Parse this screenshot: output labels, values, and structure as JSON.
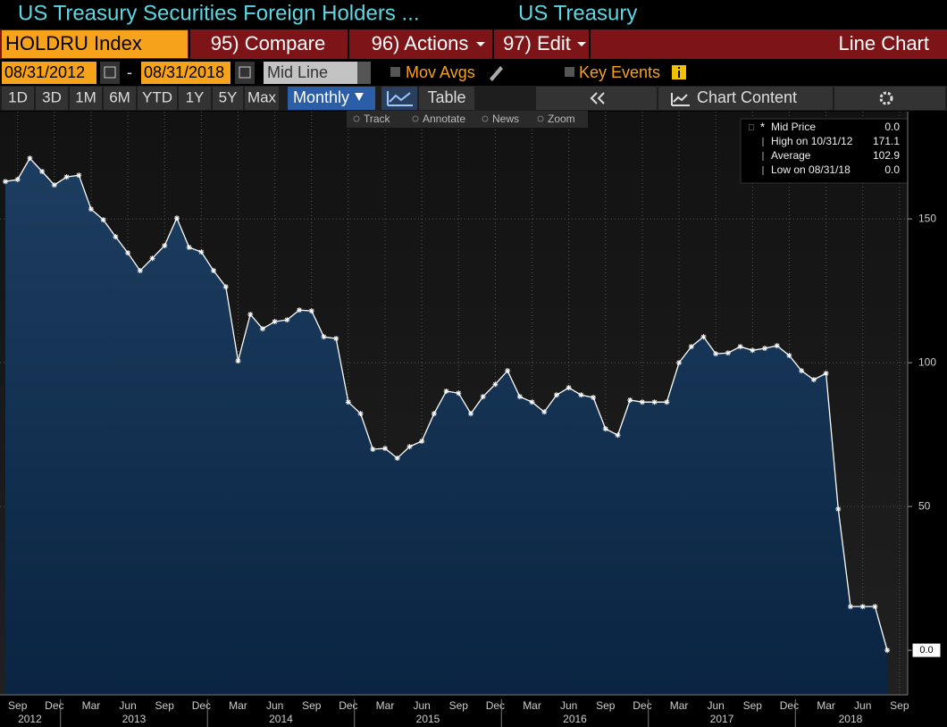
{
  "header": {
    "title": "US Treasury Securities Foreign Holders ...",
    "subtitle": "US Treasury"
  },
  "toolbar": {
    "ticker": "HOLDRU Index",
    "menus": [
      "95) Compare",
      "96) Actions",
      "97) Edit"
    ],
    "view": "Line Chart"
  },
  "range": {
    "start": "08/31/2012",
    "separator": "-",
    "end": "08/31/2018",
    "mode": "Mid Line",
    "options": [
      "Mov Avgs",
      "Key Events"
    ]
  },
  "periods": [
    "1D",
    "3D",
    "1M",
    "6M",
    "YTD",
    "1Y",
    "5Y",
    "Max"
  ],
  "frequency": "Monthly",
  "table_button": "Table",
  "chart_content": "Chart Content",
  "tools": [
    "Track",
    "Annotate",
    "News",
    "Zoom"
  ],
  "legend_rows": [
    {
      "label": "High on 10/31/12",
      "value": "171.1"
    },
    {
      "label": "Average",
      "value": "102.9"
    },
    {
      "label": "Low on 08/31/18",
      "value": "0.0"
    }
  ],
  "chart_data": {
    "type": "line",
    "categories": [
      null,
      "Sep",
      null,
      null,
      "Dec",
      null,
      null,
      "Mar",
      null,
      null,
      "Jun",
      null,
      null,
      "Sep",
      null,
      null,
      "Dec",
      null,
      null,
      "Mar",
      null,
      null,
      "Jun",
      null,
      null,
      "Sep",
      null,
      null,
      "Dec",
      null,
      null,
      "Mar",
      null,
      null,
      "Jun",
      null,
      null,
      "Sep",
      null,
      null,
      "Dec",
      null,
      null,
      "Mar",
      null,
      null,
      "Jun",
      null,
      null,
      "Sep",
      null,
      null,
      "Dec",
      null,
      null,
      "Mar",
      null,
      null,
      "Jun",
      null,
      null,
      "Sep",
      null,
      null,
      "Dec",
      null,
      null,
      "Mar",
      null,
      null,
      "Jun",
      null,
      null,
      "Sep"
    ],
    "year_labels": [
      "2012",
      "2013",
      "2014",
      "2015",
      "2016",
      "2017",
      "2018"
    ],
    "series": [
      {
        "name": "Mid Price",
        "color": "#ffffff",
        "latest": "0.0",
        "values": [
          163.0,
          163.7,
          171.1,
          166.5,
          161.8,
          164.6,
          165.2,
          153.4,
          149.7,
          143.8,
          138.2,
          132.0,
          136.3,
          140.7,
          150.3,
          140.1,
          138.5,
          132.0,
          126.4,
          100.6,
          116.8,
          111.8,
          114.3,
          114.9,
          118.3,
          118.0,
          109.0,
          108.4,
          86.3,
          82.3,
          69.9,
          70.2,
          66.8,
          70.8,
          72.7,
          82.3,
          90.1,
          89.4,
          82.3,
          88.2,
          92.5,
          97.2,
          88.2,
          86.3,
          82.9,
          88.8,
          91.3,
          88.8,
          87.9,
          77.0,
          74.8,
          87.0,
          86.3,
          86.3,
          86.3,
          100.0,
          105.6,
          109.0,
          103.1,
          103.4,
          105.6,
          104.3,
          105.0,
          105.9,
          102.5,
          97.2,
          94.1,
          96.3,
          49.1,
          15.2,
          15.2,
          15.2,
          0.0,
          null
        ]
      }
    ],
    "ylim": [
      -15.5,
      187.3
    ],
    "yticks": [
      50,
      100,
      150
    ],
    "y_tag": {
      "value": 0,
      "label": "0.0"
    },
    "grid": true
  }
}
